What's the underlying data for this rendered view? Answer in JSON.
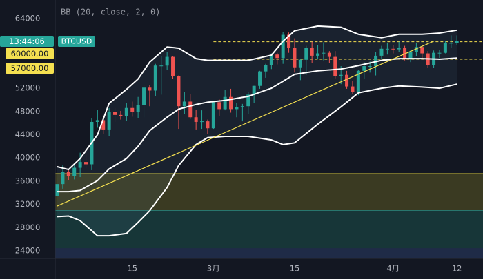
{
  "chart_data": {
    "type": "candlestick",
    "indicator_label": "BB (20, close, 2, 0)",
    "symbol": "BTCUSD",
    "countdown": "13:44:06",
    "xlim": [
      -0.3,
      73.5
    ],
    "ylim": [
      22700,
      67200
    ],
    "yticks": [
      24000,
      28000,
      32000,
      36000,
      40000,
      44000,
      48000,
      52000,
      64000
    ],
    "xticks": [
      {
        "value": 13,
        "label": "15"
      },
      {
        "value": 27,
        "label": "3月"
      },
      {
        "value": 41,
        "label": "15"
      },
      {
        "value": 58,
        "label": "4月"
      },
      {
        "value": 69,
        "label": "12"
      }
    ],
    "up_color": "#26a69a",
    "down_color": "#ef5350",
    "candles": {
      "open": [
        33500,
        35500,
        37600,
        36900,
        38300,
        39300,
        38900,
        46200,
        46500,
        44900,
        47900,
        47400,
        47200,
        48600,
        47900,
        49100,
        52100,
        51600,
        55900,
        55900,
        57400,
        54100,
        48900,
        49700,
        47000,
        46200,
        46300,
        45100,
        49600,
        48400,
        50500,
        48400,
        48800,
        48900,
        50900,
        52400,
        54900,
        56000,
        57800,
        57200,
        61200,
        59000,
        55600,
        56900,
        58900,
        57600,
        58000,
        58100,
        57400,
        54100,
        54300,
        52300,
        51300,
        55000,
        55800,
        55800,
        57600,
        58800,
        58800,
        58700,
        59000,
        57100,
        58200,
        59100,
        58000,
        56000,
        58100,
        58100,
        59800,
        59800
      ],
      "high": [
        36500,
        38700,
        38000,
        39000,
        40900,
        40700,
        46800,
        48300,
        47100,
        48600,
        48600,
        48100,
        49500,
        49700,
        50500,
        52500,
        52500,
        56200,
        57500,
        58300,
        57500,
        54200,
        51400,
        51000,
        48300,
        48200,
        46600,
        49800,
        50200,
        51700,
        51900,
        49400,
        49300,
        51400,
        52400,
        55000,
        56200,
        58000,
        58100,
        61700,
        61600,
        60600,
        57000,
        59300,
        60000,
        59400,
        59900,
        58400,
        58400,
        55800,
        55000,
        53200,
        55200,
        56500,
        56600,
        58300,
        59300,
        59800,
        59400,
        60000,
        59300,
        58500,
        59800,
        59500,
        58400,
        58500,
        58600,
        60200,
        61100,
        61100
      ],
      "low": [
        33200,
        34700,
        36200,
        36300,
        36700,
        38200,
        37900,
        45200,
        44100,
        43800,
        46200,
        46600,
        46400,
        47100,
        46800,
        47000,
        48900,
        50700,
        50900,
        55200,
        53600,
        45000,
        47500,
        46700,
        44900,
        45000,
        44100,
        45000,
        47200,
        48200,
        47800,
        47000,
        46300,
        47500,
        49500,
        51900,
        53800,
        55300,
        56100,
        56200,
        58100,
        54700,
        53400,
        54300,
        56300,
        57000,
        56800,
        56300,
        53700,
        52700,
        51900,
        51000,
        50800,
        53600,
        54700,
        54200,
        57000,
        57800,
        58000,
        58200,
        56800,
        56500,
        57500,
        57000,
        55500,
        55500,
        57200,
        58000,
        59000,
        59400
      ],
      "close": [
        35500,
        37600,
        36900,
        38300,
        39300,
        38900,
        46200,
        46500,
        44900,
        47900,
        47400,
        47200,
        48600,
        47900,
        49100,
        52100,
        51600,
        55900,
        55900,
        57400,
        54100,
        48900,
        49700,
        47000,
        46200,
        46300,
        45100,
        49600,
        48400,
        50500,
        48400,
        48800,
        48900,
        50900,
        52400,
        54900,
        56000,
        57800,
        57200,
        61200,
        59000,
        55600,
        56900,
        58900,
        57600,
        58000,
        58100,
        57400,
        54100,
        54300,
        52300,
        51300,
        55000,
        55800,
        55800,
        57600,
        58800,
        58800,
        58700,
        59000,
        57100,
        58200,
        59100,
        58000,
        56000,
        58100,
        58100,
        59800,
        59800,
        60100
      ]
    },
    "bollinger": {
      "color": "#ffffff",
      "x": [
        0,
        2,
        4,
        7,
        9,
        12,
        14,
        16,
        19,
        21,
        24,
        26,
        29,
        33,
        37,
        39,
        41,
        45,
        49,
        52,
        56,
        59,
        63,
        66,
        69
      ],
      "upper": [
        38500,
        38000,
        39900,
        44000,
        49400,
        51800,
        53600,
        56500,
        59100,
        58900,
        57100,
        56800,
        56800,
        56800,
        57700,
        60100,
        61900,
        62700,
        62500,
        61300,
        60700,
        61300,
        61300,
        61500,
        62000
      ],
      "middle": [
        34200,
        34200,
        34400,
        36100,
        38100,
        39900,
        42000,
        44700,
        47000,
        48400,
        49200,
        49600,
        49900,
        50600,
        52000,
        53200,
        54400,
        55000,
        55300,
        55900,
        56800,
        57100,
        57100,
        57000,
        57200
      ],
      "lower": [
        29900,
        30000,
        29200,
        26600,
        26600,
        27000,
        28900,
        30900,
        34900,
        38700,
        42300,
        43500,
        43700,
        43700,
        43100,
        42300,
        42600,
        45800,
        48800,
        51200,
        52000,
        52400,
        52200,
        52000,
        52700
      ]
    },
    "trendline": {
      "x": [
        0,
        65
      ],
      "values": [
        31700,
        60100
      ],
      "color": "#f5e050"
    },
    "levels": [
      {
        "value": 60000,
        "label": "60000.00"
      },
      {
        "value": 57000,
        "label": "57000.00"
      }
    ],
    "level_start": 27,
    "level_color": "#f5e050",
    "zones": [
      {
        "from": 30900,
        "to": 37300,
        "color": "#3a3a22",
        "line": "#d8c83a"
      },
      {
        "from": 24400,
        "to": 30900,
        "color": "#173638",
        "line": "#1f9a9a"
      },
      {
        "from": 22700,
        "to": 24400,
        "color": "#1f2b47",
        "line": "#1f2b47"
      }
    ]
  }
}
